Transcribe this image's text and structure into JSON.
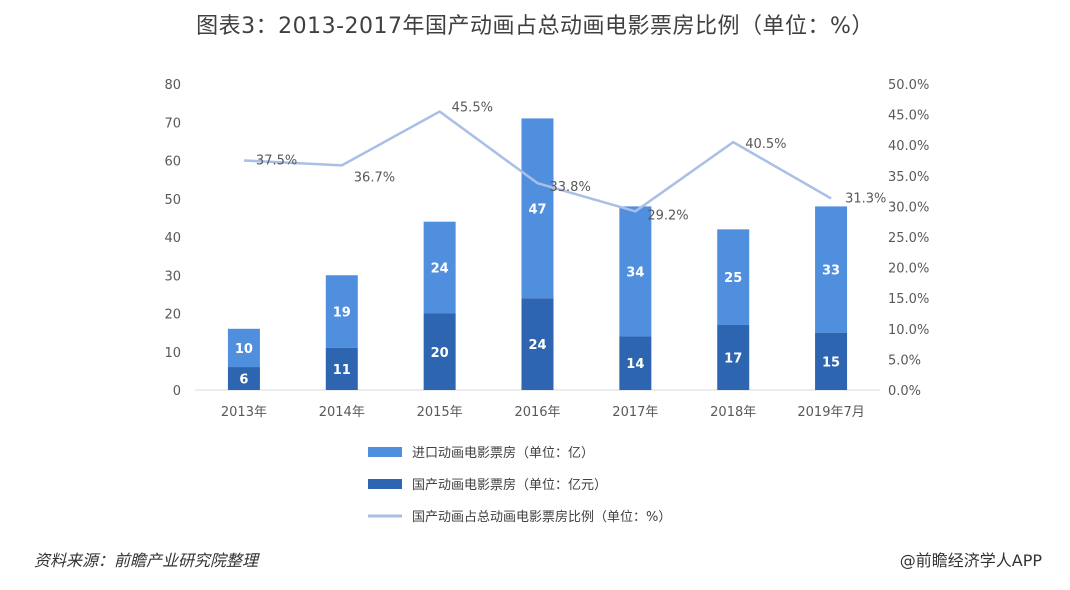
{
  "title": "图表3：2013-2017年国产动画占总动画电影票房比例（单位：%）",
  "footer": {
    "source": "资料来源：前瞻产业研究院整理",
    "brand": "@前瞻经济学人APP"
  },
  "colors": {
    "imported": "#4f8fde",
    "domestic": "#2e65b0",
    "ratio_line": "#a9bfe6"
  },
  "chart_data": {
    "type": "bar",
    "stacked": true,
    "categories": [
      "2013年",
      "2014年",
      "2015年",
      "2016年",
      "2017年",
      "2018年",
      "2019年7月"
    ],
    "series": [
      {
        "name": "国产动画电影票房（单位：亿元）",
        "type": "bar",
        "axis": "left",
        "values": [
          6,
          11,
          20,
          24,
          14,
          17,
          15
        ]
      },
      {
        "name": "进口动画电影票房（单位：亿）",
        "type": "bar",
        "axis": "left",
        "values": [
          10,
          19,
          24,
          47,
          34,
          25,
          33
        ]
      },
      {
        "name": "国产动画占总动画电影票房比例（单位：%）",
        "type": "line",
        "axis": "right",
        "values": [
          37.5,
          36.7,
          45.5,
          33.8,
          29.2,
          40.5,
          31.3
        ]
      }
    ],
    "left_axis": {
      "range": [
        0,
        80
      ],
      "ticks": [
        "0",
        "10",
        "20",
        "30",
        "40",
        "50",
        "60",
        "70",
        "80"
      ]
    },
    "right_axis": {
      "range": [
        0,
        50
      ],
      "ticks": [
        "0.0%",
        "5.0%",
        "10.0%",
        "15.0%",
        "20.0%",
        "25.0%",
        "30.0%",
        "35.0%",
        "40.0%",
        "45.0%",
        "50.0%"
      ]
    },
    "line_labels": [
      "37.5%",
      "36.7%",
      "45.5%",
      "33.8%",
      "29.2%",
      "40.5%",
      "31.3%"
    ],
    "legend": {
      "position": "bottom",
      "items": [
        {
          "label": "进口动画电影票房（单位：亿）",
          "ref": "imported"
        },
        {
          "label": "国产动画电影票房（单位：亿元）",
          "ref": "domestic"
        },
        {
          "label": "国产动画占总动画电影票房比例（单位：%）",
          "ref": "ratio_line"
        }
      ]
    },
    "grid": false
  }
}
